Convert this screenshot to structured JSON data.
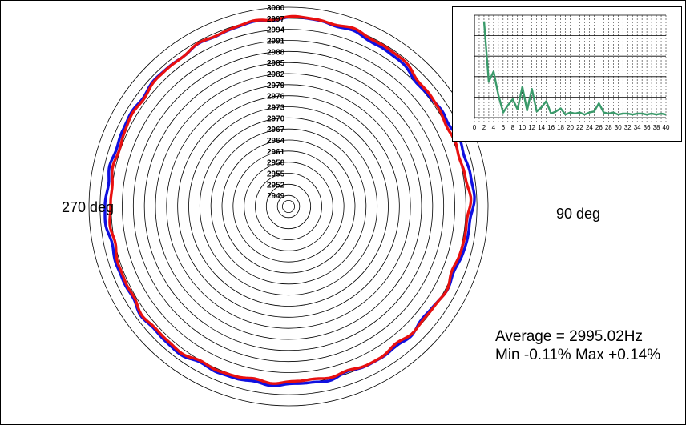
{
  "figure": {
    "left_label": "270 deg",
    "right_label": "90 deg",
    "average_text": "Average = 2995.02Hz",
    "minmax_text": "Min -0.11% Max +0.14%"
  },
  "colors": {
    "series_blue": "#1010e0",
    "series_red": "#e81010",
    "spectrum": "#3a9a6a",
    "grid": "#000000"
  },
  "chart_data": [
    {
      "type": "polar-line",
      "radial_ticks": [
        "3000",
        "2997",
        "2994",
        "2991",
        "2988",
        "2985",
        "2982",
        "2979",
        "2976",
        "2973",
        "2970",
        "2967",
        "2964",
        "2961",
        "2958",
        "2955",
        "2952",
        "2949"
      ],
      "rlim": [
        2946,
        3000
      ],
      "grid": true,
      "angular_labels": [
        "270 deg",
        "90 deg"
      ],
      "series": [
        {
          "color": "blue",
          "theta_deg": [
            0,
            10,
            20,
            30,
            40,
            50,
            60,
            70,
            80,
            90,
            100,
            110,
            120,
            130,
            140,
            150,
            160,
            170,
            180,
            190,
            200,
            210,
            220,
            230,
            240,
            250,
            260,
            270,
            280,
            290,
            300,
            310,
            320,
            330,
            340,
            350
          ],
          "values": [
            2997.2,
            2997.1,
            2996.4,
            2996.0,
            2995.2,
            2994.1,
            2995.0,
            2995.4,
            2996.1,
            2996.0,
            2995.0,
            2994.5,
            2994.1,
            2993.4,
            2994.1,
            2993.9,
            2993.8,
            2994.2,
            2994.2,
            2994.6,
            2994.6,
            2994.9,
            2995.5,
            2995.4,
            2995.1,
            2994.9,
            2995.2,
            2995.7,
            2995.2,
            2995.4,
            2995.3,
            2995.6,
            2995.8,
            2996.0,
            2996.5,
            2996.7
          ]
        },
        {
          "color": "red",
          "theta_deg": [
            0,
            10,
            20,
            30,
            40,
            50,
            60,
            70,
            80,
            90,
            100,
            110,
            120,
            130,
            140,
            150,
            160,
            170,
            180,
            190,
            200,
            210,
            220,
            230,
            240,
            250,
            260,
            270,
            280,
            290,
            300,
            310,
            320,
            330,
            340,
            350
          ],
          "values": [
            2997.3,
            2997.2,
            2997.0,
            2996.7,
            2996.0,
            2994.6,
            2994.4,
            2994.0,
            2994.6,
            2995.1,
            2994.2,
            2993.9,
            2994.1,
            2993.8,
            2993.5,
            2993.8,
            2993.6,
            2993.3,
            2993.6,
            2993.9,
            2994.1,
            2994.5,
            2995.0,
            2995.1,
            2994.8,
            2994.4,
            2994.3,
            2994.2,
            2994.3,
            2994.6,
            2994.9,
            2995.3,
            2995.7,
            2996.1,
            2996.6,
            2996.9
          ]
        }
      ]
    },
    {
      "type": "line",
      "x_ticks": [
        "0",
        "2",
        "4",
        "6",
        "8",
        "10",
        "12",
        "14",
        "16",
        "18",
        "20",
        "22",
        "24",
        "26",
        "28",
        "30",
        "32",
        "34",
        "36",
        "38",
        "40"
      ],
      "xlim": [
        0,
        40
      ],
      "ylim": [
        0,
        1
      ],
      "grid": true,
      "series": [
        {
          "color": "green",
          "x": [
            2,
            3,
            4,
            5,
            6,
            7,
            8,
            9,
            10,
            11,
            12,
            13,
            14,
            15,
            16,
            17,
            18,
            19,
            20,
            21,
            22,
            23,
            24,
            25,
            26,
            27,
            28,
            29,
            30,
            31,
            32,
            33,
            34,
            35,
            36,
            37,
            38,
            39,
            40
          ],
          "values": [
            0.94,
            0.35,
            0.45,
            0.22,
            0.05,
            0.12,
            0.18,
            0.08,
            0.3,
            0.07,
            0.28,
            0.06,
            0.1,
            0.16,
            0.04,
            0.06,
            0.09,
            0.03,
            0.05,
            0.04,
            0.05,
            0.03,
            0.05,
            0.06,
            0.14,
            0.05,
            0.04,
            0.05,
            0.03,
            0.04,
            0.04,
            0.03,
            0.04,
            0.04,
            0.03,
            0.04,
            0.03,
            0.04,
            0.03
          ]
        }
      ]
    }
  ]
}
